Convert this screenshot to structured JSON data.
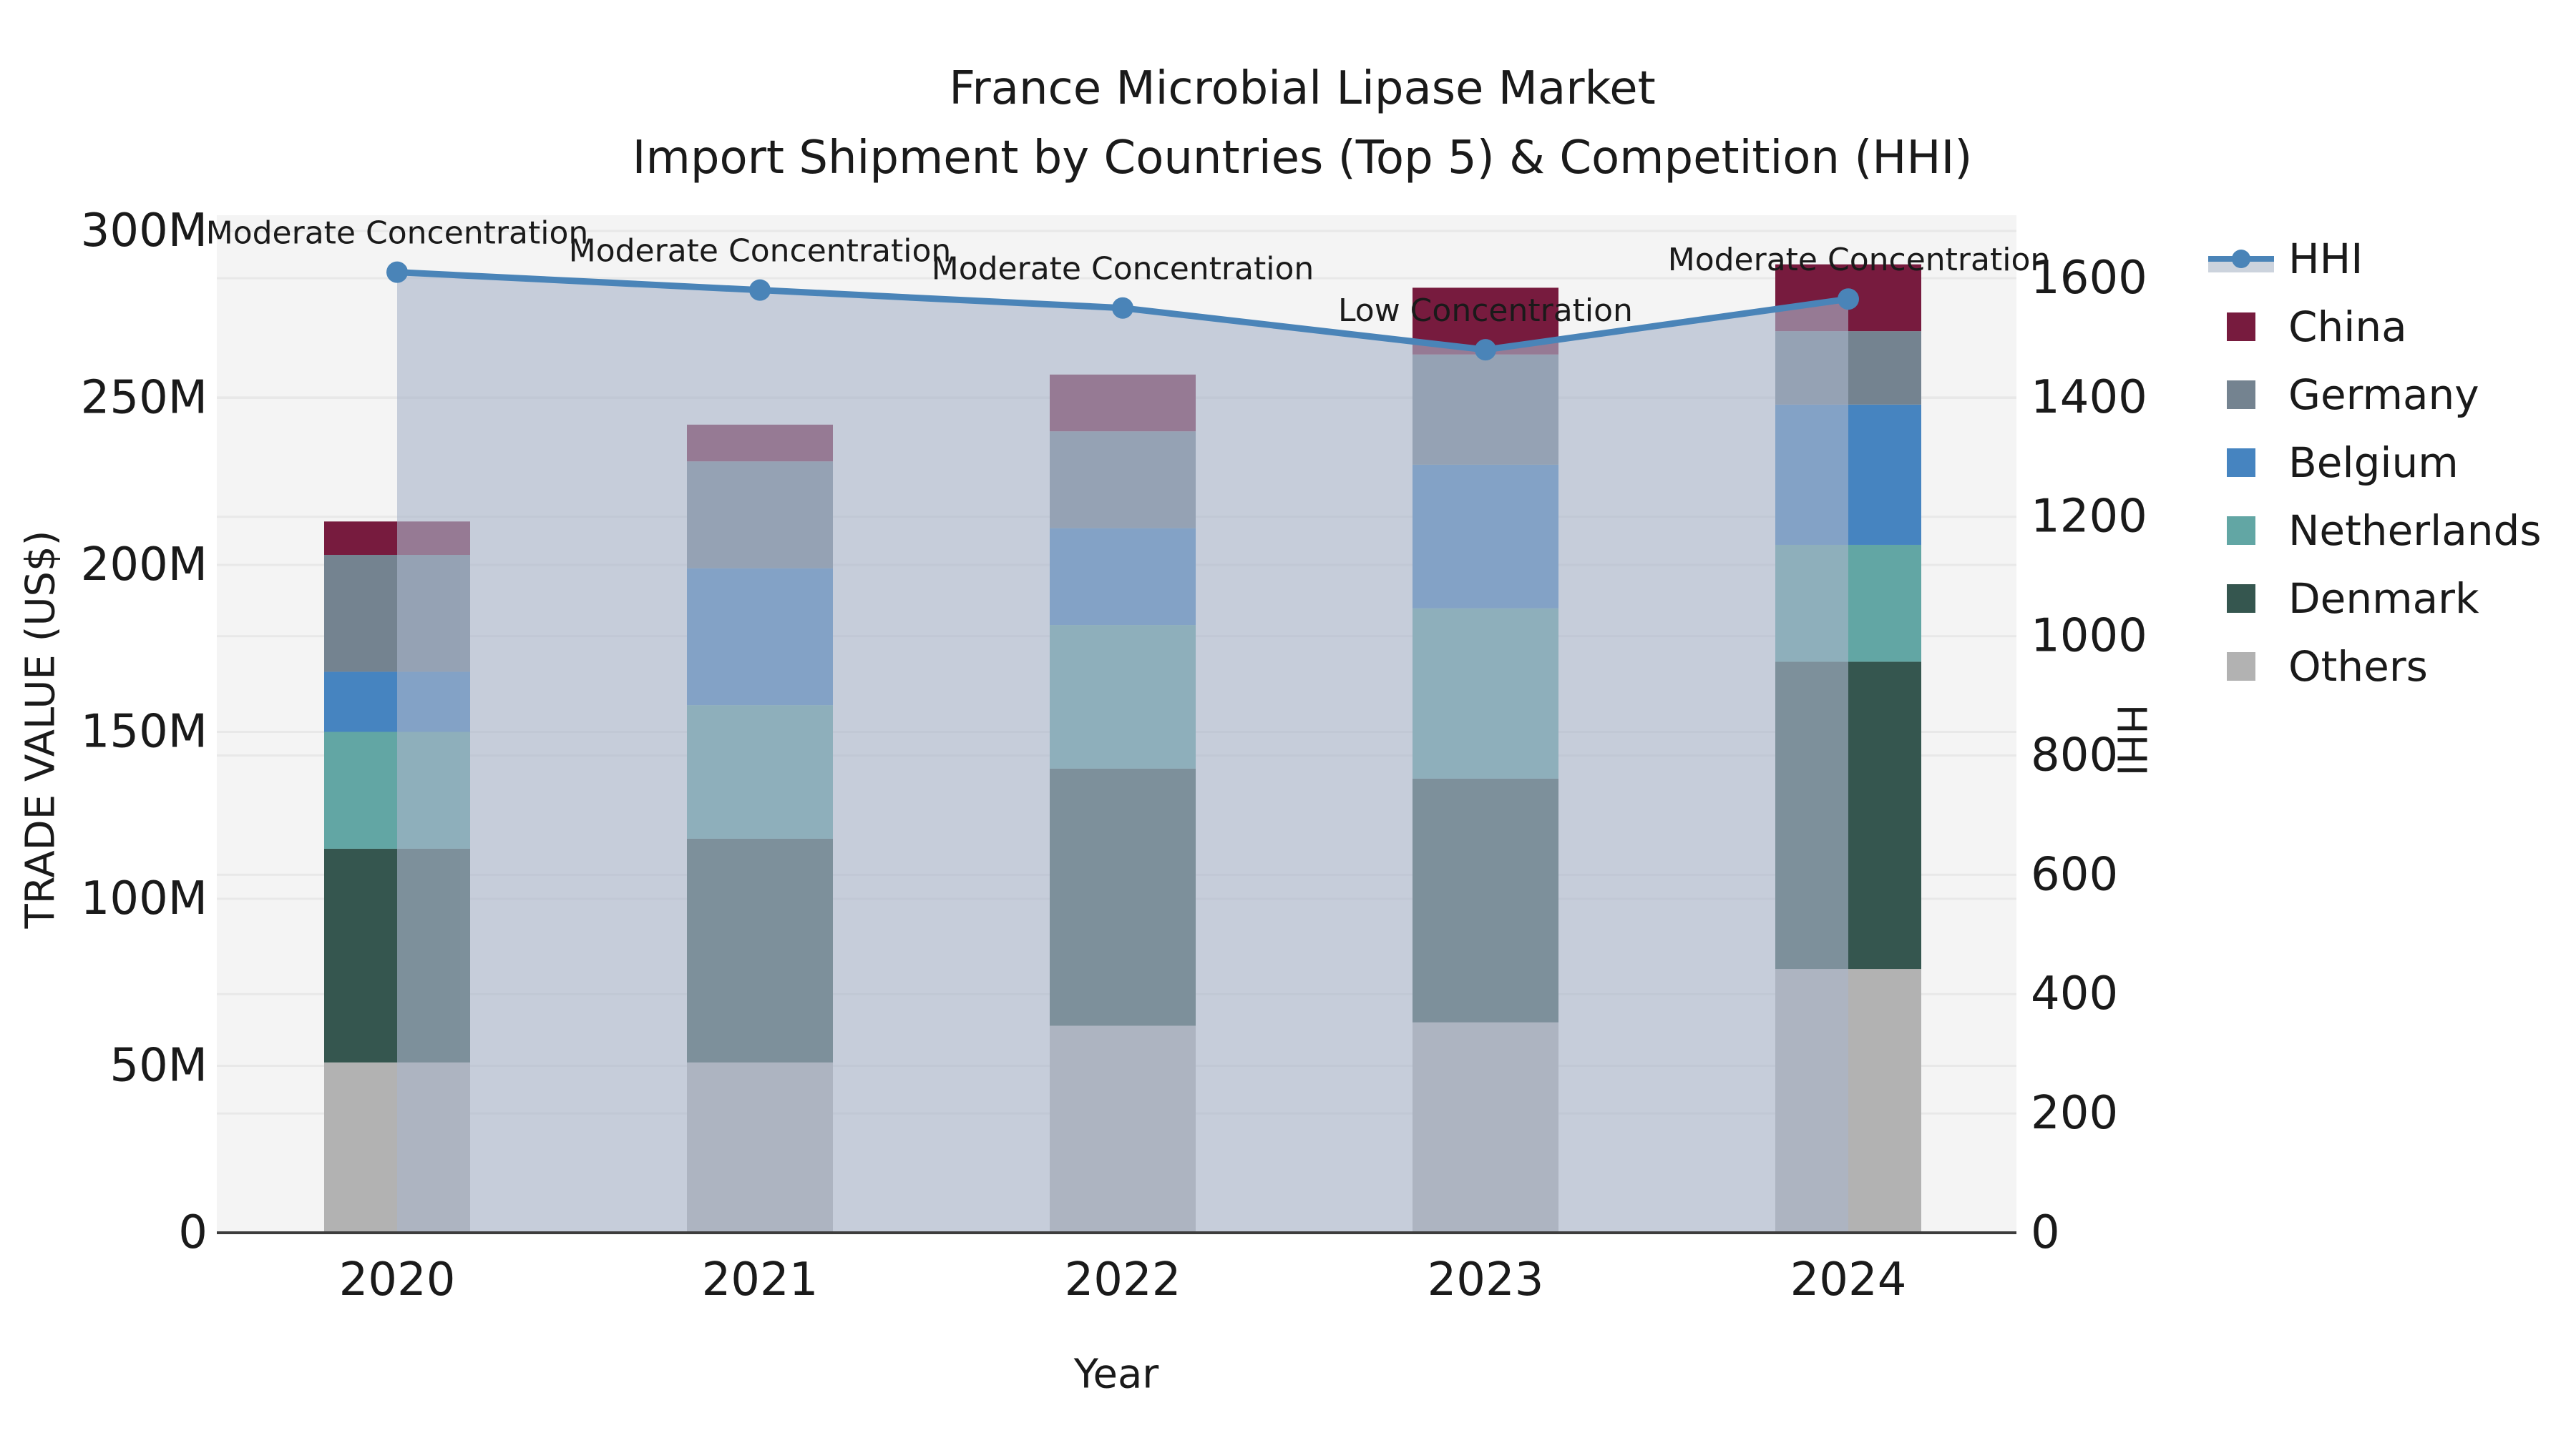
{
  "title": {
    "line1": "France Microbial Lipase Market",
    "line2": "Import Shipment by Countries (Top 5) & Competition (HHI)"
  },
  "axes": {
    "x_label": "Year",
    "left_label": "TRADE VALUE (US$)",
    "right_label": "HHI",
    "left_ticks": [
      {
        "value": 0,
        "label": "0"
      },
      {
        "value": 50,
        "label": "50M"
      },
      {
        "value": 100,
        "label": "100M"
      },
      {
        "value": 150,
        "label": "150M"
      },
      {
        "value": 200,
        "label": "200M"
      },
      {
        "value": 250,
        "label": "250M"
      },
      {
        "value": 300,
        "label": "300M"
      }
    ],
    "right_ticks": [
      {
        "value": 0,
        "label": "0"
      },
      {
        "value": 200,
        "label": "200"
      },
      {
        "value": 400,
        "label": "400"
      },
      {
        "value": 600,
        "label": "600"
      },
      {
        "value": 800,
        "label": "800"
      },
      {
        "value": 1000,
        "label": "1000"
      },
      {
        "value": 1200,
        "label": "1200"
      },
      {
        "value": 1400,
        "label": "1400"
      },
      {
        "value": 1600,
        "label": "1600"
      }
    ]
  },
  "legend": {
    "items": [
      {
        "label": "HHI",
        "type": "line",
        "color": "#4a84b8",
        "band_color": "#ccd3dd"
      },
      {
        "label": "China",
        "type": "swatch",
        "color": "#771b3e"
      },
      {
        "label": "Germany",
        "type": "swatch",
        "color": "#748390"
      },
      {
        "label": "Belgium",
        "type": "swatch",
        "color": "#4684c0"
      },
      {
        "label": "Netherlands",
        "type": "swatch",
        "color": "#62a6a4"
      },
      {
        "label": "Denmark",
        "type": "swatch",
        "color": "#35564f"
      },
      {
        "label": "Others",
        "type": "swatch",
        "color": "#b2b2b2"
      }
    ]
  },
  "chart_data": {
    "type": "bar",
    "stacked": true,
    "title": "France Microbial Lipase Market — Import Shipment by Countries (Top 5) & Competition (HHI)",
    "xlabel": "Year",
    "ylabel": "TRADE VALUE (US$)",
    "y2label": "HHI",
    "unit": "USD millions",
    "categories": [
      "2020",
      "2021",
      "2022",
      "2023",
      "2024"
    ],
    "ylim": [
      0,
      305
    ],
    "y2lim": [
      0,
      1640
    ],
    "grid": true,
    "legend_position": "right",
    "series": [
      {
        "name": "Others",
        "color": "#b2b2b2",
        "values": [
          51,
          51,
          62,
          63,
          79
        ]
      },
      {
        "name": "Denmark",
        "color": "#35564f",
        "values": [
          64,
          67,
          77,
          73,
          92
        ]
      },
      {
        "name": "Netherlands",
        "color": "#62a6a4",
        "values": [
          35,
          40,
          43,
          51,
          35
        ]
      },
      {
        "name": "Belgium",
        "color": "#4684c0",
        "values": [
          18,
          41,
          29,
          43,
          42
        ]
      },
      {
        "name": "Germany",
        "color": "#748390",
        "values": [
          35,
          32,
          29,
          33,
          22
        ]
      },
      {
        "name": "China",
        "color": "#771b3e",
        "values": [
          10,
          11,
          17,
          20,
          20
        ]
      }
    ],
    "bar_totals": [
      213,
      242,
      257,
      283,
      290
    ],
    "line_series": {
      "name": "HHI",
      "axis": "right",
      "color": "#4a84b8",
      "fill_color": "rgba(170,181,202,0.62)",
      "values": [
        1610,
        1580,
        1550,
        1480,
        1565
      ]
    },
    "annotations": [
      {
        "category": "2020",
        "text": "Moderate Concentration"
      },
      {
        "category": "2021",
        "text": "Moderate Concentration"
      },
      {
        "category": "2022",
        "text": "Moderate Concentration"
      },
      {
        "category": "2023",
        "text": "Low Concentration"
      },
      {
        "category": "2024",
        "text": "Moderate Concentration"
      }
    ]
  }
}
